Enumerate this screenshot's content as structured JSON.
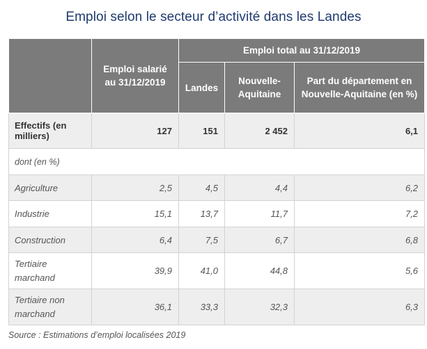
{
  "title": "Emploi selon le secteur d’activité dans les Landes",
  "table": {
    "header": {
      "col_salarie": "Emploi salarié au 31/12/2019",
      "group_total": "Emploi total au 31/12/2019",
      "col_landes": "Landes",
      "col_na": "Nouvelle-Aquitaine",
      "col_part": "Part du département en Nouvelle-Aquitaine (en %)"
    },
    "rows": [
      {
        "label": "Effectifs (en milliers)",
        "salarie": "127",
        "landes": "151",
        "na": "2 452",
        "part": "6,1"
      },
      {
        "label": "dont (en %)"
      },
      {
        "label": "Agriculture",
        "salarie": "2,5",
        "landes": "4,5",
        "na": "4,4",
        "part": "6,2"
      },
      {
        "label": "Industrie",
        "salarie": "15,1",
        "landes": "13,7",
        "na": "11,7",
        "part": "7,2"
      },
      {
        "label": "Construction",
        "salarie": "6,4",
        "landes": "7,5",
        "na": "6,7",
        "part": "6,8"
      },
      {
        "label": "Tertiaire marchand",
        "salarie": "39,9",
        "landes": "41,0",
        "na": "44,8",
        "part": "5,6"
      },
      {
        "label": "Tertiaire non marchand",
        "salarie": "36,1",
        "landes": "33,3",
        "na": "32,3",
        "part": "6,3"
      }
    ]
  },
  "source": "Source : Estimations d’emploi localisées 2019"
}
